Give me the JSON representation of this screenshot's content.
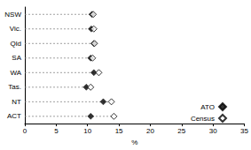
{
  "chart_data": {
    "type": "dot",
    "orientation": "horizontal",
    "categories": [
      "NSW",
      "Vic.",
      "Qld",
      "SA",
      "WA",
      "Tas.",
      "NT",
      "ACT"
    ],
    "series": [
      {
        "name": "ATO",
        "color": "#000000",
        "marker": "diamond",
        "values": [
          10.7,
          10.6,
          11.0,
          10.5,
          11.0,
          9.8,
          12.5,
          10.5
        ]
      },
      {
        "name": "Census",
        "color": "#000000",
        "marker": "open_diamond",
        "values": [
          10.9,
          11.0,
          11.1,
          10.8,
          11.8,
          10.5,
          13.8,
          14.2
        ]
      }
    ],
    "xlabel": "%",
    "xlim": [
      0,
      35
    ],
    "xticks": [
      0,
      5,
      10,
      15,
      20,
      25,
      30,
      35
    ],
    "line_style": "dashed",
    "grid": false,
    "legend": "lower right"
  }
}
